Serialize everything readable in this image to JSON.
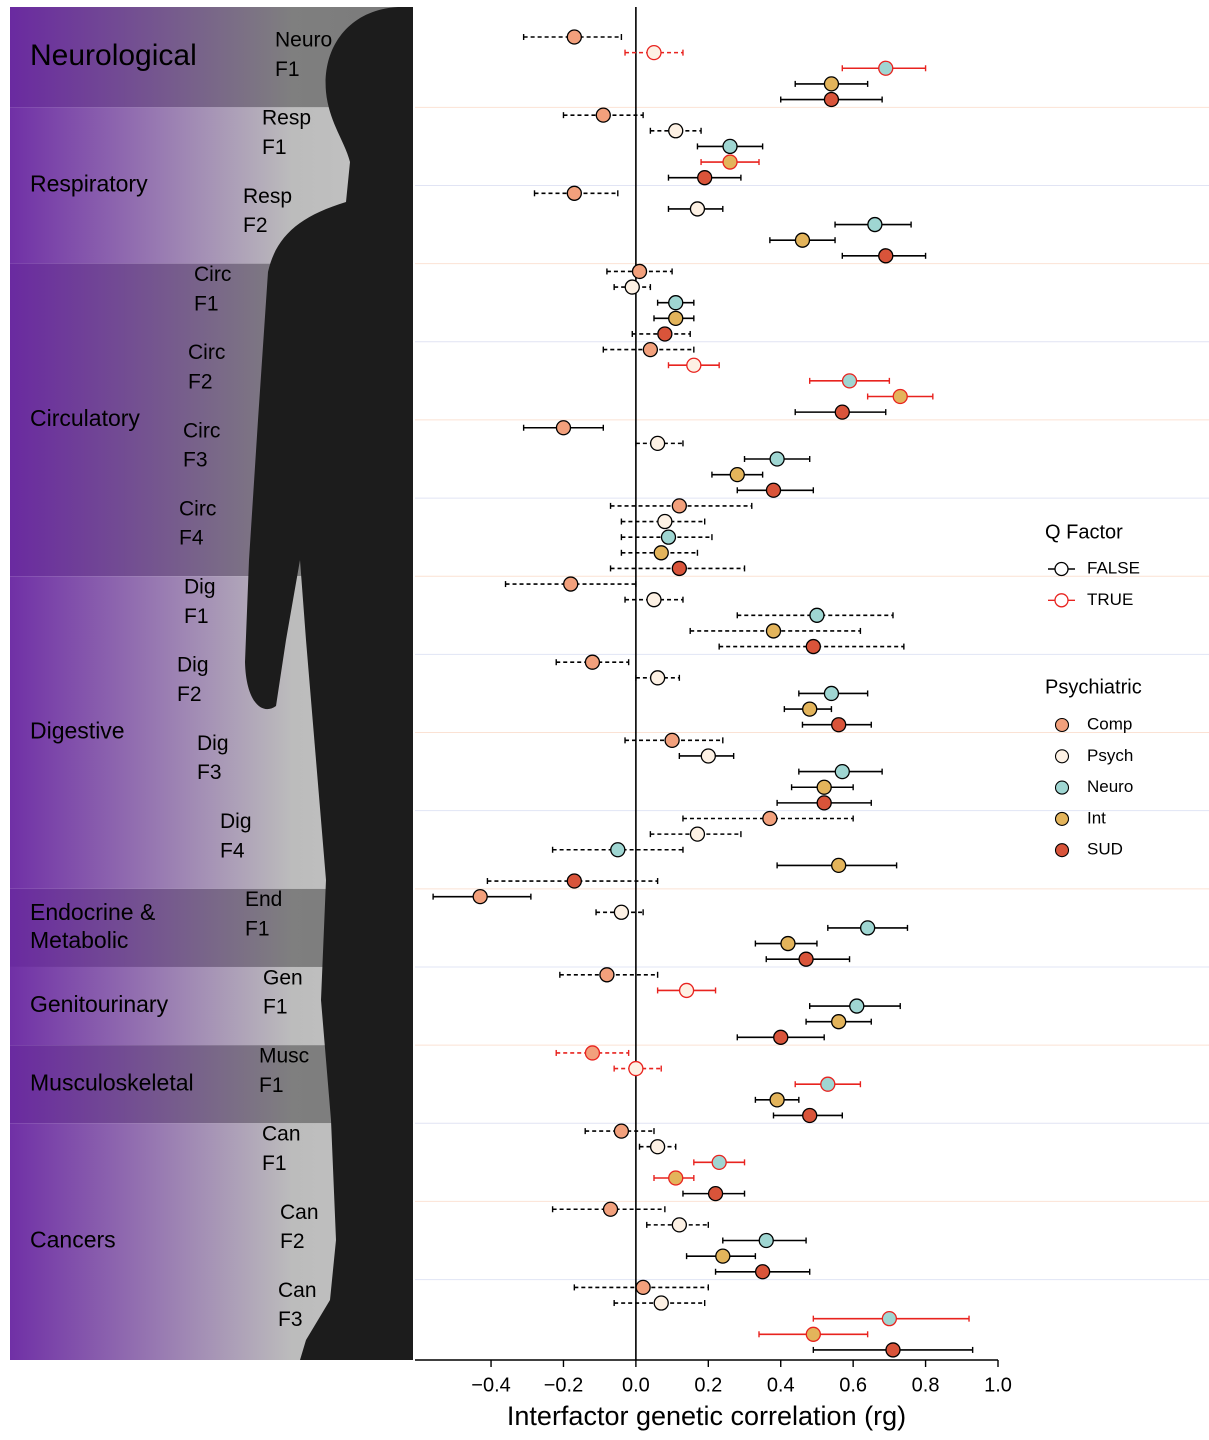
{
  "chart_data": {
    "type": "forest",
    "xlabel": "Interfactor genetic correlation (rg)",
    "xlim": [
      -0.61,
      1.0
    ],
    "xticks": [
      {
        "value": -0.4,
        "label": "−0.4"
      },
      {
        "value": -0.2,
        "label": "−0.2"
      },
      {
        "value": 0,
        "label": "0.0"
      },
      {
        "value": 0.2,
        "label": "0.2"
      },
      {
        "value": 0.4,
        "label": "0.4"
      },
      {
        "value": 0.6,
        "label": "0.6"
      },
      {
        "value": 0.8,
        "label": "0.8"
      },
      {
        "value": 1,
        "label": "1.0"
      }
    ],
    "groups": [
      {
        "label": [
          "Neurological"
        ],
        "factors": [
          [
            "Neuro",
            "F1"
          ]
        ]
      },
      {
        "label": [
          "Respiratory"
        ],
        "factors": [
          [
            "Resp",
            "F1"
          ],
          [
            "Resp",
            "F2"
          ]
        ]
      },
      {
        "label": [
          "Circulatory"
        ],
        "factors": [
          [
            "Circ",
            "F1"
          ],
          [
            "Circ",
            "F2"
          ],
          [
            "Circ",
            "F3"
          ],
          [
            "Circ",
            "F4"
          ]
        ]
      },
      {
        "label": [
          "Digestive"
        ],
        "factors": [
          [
            "Dig",
            "F1"
          ],
          [
            "Dig",
            "F2"
          ],
          [
            "Dig",
            "F3"
          ],
          [
            "Dig",
            "F4"
          ]
        ]
      },
      {
        "label": [
          "Endocrine &",
          "Metabolic"
        ],
        "factors": [
          [
            "End",
            "F1"
          ]
        ]
      },
      {
        "label": [
          "Genitourinary"
        ],
        "factors": [
          [
            "Gen",
            "F1"
          ]
        ]
      },
      {
        "label": [
          "Musculoskeletal"
        ],
        "factors": [
          [
            "Musc",
            "F1"
          ]
        ]
      },
      {
        "label": [
          "Cancers"
        ],
        "factors": [
          [
            "Can",
            "F1"
          ],
          [
            "Can",
            "F2"
          ],
          [
            "Can",
            "F3"
          ]
        ]
      }
    ],
    "q_legend": {
      "title": "Q Factor",
      "entries": [
        {
          "name": "FALSE",
          "color": "#000000"
        },
        {
          "name": "TRUE",
          "color": "#e8231f"
        }
      ]
    },
    "series_legend_title": "Psychiatric",
    "series": [
      {
        "name": "Comp",
        "color": "#f2a07c",
        "values": [
          -0.17,
          -0.09,
          -0.17,
          0.01,
          0.04,
          -0.2,
          0.12,
          -0.18,
          -0.12,
          0.1,
          0.37,
          -0.43,
          -0.08,
          -0.12,
          -0.04,
          -0.07,
          0.02
        ],
        "lower": [
          -0.31,
          -0.2,
          -0.28,
          -0.08,
          -0.09,
          -0.31,
          -0.07,
          -0.36,
          -0.22,
          -0.03,
          0.13,
          -0.56,
          -0.21,
          -0.22,
          -0.14,
          -0.23,
          -0.17
        ],
        "upper": [
          -0.04,
          0.02,
          -0.05,
          0.1,
          0.16,
          -0.09,
          0.32,
          0.0,
          -0.02,
          0.24,
          0.6,
          -0.29,
          0.06,
          -0.02,
          0.05,
          0.08,
          0.2
        ],
        "q": [
          false,
          false,
          false,
          false,
          false,
          false,
          false,
          false,
          false,
          false,
          false,
          false,
          false,
          true,
          false,
          false,
          false
        ],
        "dashed": [
          true,
          true,
          true,
          true,
          true,
          false,
          true,
          true,
          true,
          true,
          true,
          false,
          true,
          true,
          true,
          true,
          true
        ]
      },
      {
        "name": "Psych",
        "color": "#fdf1e4",
        "values": [
          0.05,
          0.11,
          0.17,
          -0.01,
          0.16,
          0.06,
          0.08,
          0.05,
          0.06,
          0.2,
          0.17,
          -0.04,
          0.14,
          0.0,
          0.06,
          0.12,
          0.07
        ],
        "lower": [
          -0.03,
          0.04,
          0.09,
          -0.06,
          0.09,
          0.0,
          -0.04,
          -0.03,
          0.0,
          0.12,
          0.04,
          -0.11,
          0.06,
          -0.06,
          0.01,
          0.03,
          -0.06
        ],
        "upper": [
          0.13,
          0.18,
          0.24,
          0.04,
          0.23,
          0.13,
          0.19,
          0.13,
          0.12,
          0.27,
          0.29,
          0.02,
          0.22,
          0.07,
          0.11,
          0.2,
          0.19
        ],
        "q": [
          true,
          false,
          false,
          false,
          true,
          false,
          false,
          false,
          false,
          false,
          false,
          false,
          true,
          true,
          false,
          false,
          false
        ],
        "dashed": [
          true,
          true,
          false,
          true,
          false,
          true,
          true,
          true,
          true,
          false,
          true,
          true,
          false,
          true,
          true,
          true,
          true
        ]
      },
      {
        "name": "Neuro",
        "color": "#9fd6d2",
        "values": [
          0.69,
          0.26,
          0.66,
          0.11,
          0.59,
          0.39,
          0.09,
          0.5,
          0.54,
          0.57,
          -0.05,
          0.64,
          0.61,
          0.53,
          0.23,
          0.36,
          0.7
        ],
        "lower": [
          0.57,
          0.17,
          0.55,
          0.06,
          0.48,
          0.3,
          -0.04,
          0.28,
          0.45,
          0.45,
          -0.23,
          0.53,
          0.48,
          0.44,
          0.16,
          0.24,
          0.49
        ],
        "upper": [
          0.8,
          0.35,
          0.76,
          0.16,
          0.7,
          0.48,
          0.21,
          0.71,
          0.64,
          0.68,
          0.13,
          0.75,
          0.73,
          0.62,
          0.3,
          0.47,
          0.92
        ],
        "q": [
          true,
          false,
          false,
          false,
          true,
          false,
          false,
          false,
          false,
          false,
          false,
          false,
          false,
          true,
          true,
          false,
          true
        ],
        "dashed": [
          false,
          false,
          false,
          false,
          false,
          false,
          true,
          true,
          false,
          false,
          true,
          false,
          false,
          false,
          false,
          false,
          false
        ]
      },
      {
        "name": "Int",
        "color": "#e3b45b",
        "values": [
          0.54,
          0.26,
          0.46,
          0.11,
          0.73,
          0.28,
          0.07,
          0.38,
          0.48,
          0.52,
          0.56,
          0.42,
          0.56,
          0.39,
          0.11,
          0.24,
          0.49
        ],
        "lower": [
          0.44,
          0.18,
          0.37,
          0.05,
          0.64,
          0.21,
          -0.04,
          0.15,
          0.41,
          0.43,
          0.39,
          0.33,
          0.47,
          0.33,
          0.05,
          0.14,
          0.34
        ],
        "upper": [
          0.64,
          0.34,
          0.55,
          0.16,
          0.82,
          0.35,
          0.17,
          0.62,
          0.54,
          0.6,
          0.72,
          0.5,
          0.65,
          0.45,
          0.16,
          0.33,
          0.64
        ],
        "q": [
          false,
          true,
          false,
          false,
          true,
          false,
          false,
          false,
          false,
          false,
          false,
          false,
          false,
          false,
          true,
          false,
          true
        ],
        "dashed": [
          false,
          false,
          false,
          false,
          false,
          false,
          true,
          true,
          false,
          false,
          false,
          false,
          false,
          false,
          false,
          false,
          false
        ]
      },
      {
        "name": "SUD",
        "color": "#d9543a",
        "values": [
          0.54,
          0.19,
          0.69,
          0.08,
          0.57,
          0.38,
          0.12,
          0.49,
          0.56,
          0.52,
          -0.17,
          0.47,
          0.4,
          0.48,
          0.22,
          0.35,
          0.71
        ],
        "lower": [
          0.4,
          0.09,
          0.57,
          -0.01,
          0.44,
          0.28,
          -0.07,
          0.23,
          0.46,
          0.39,
          -0.41,
          0.36,
          0.28,
          0.38,
          0.13,
          0.22,
          0.49
        ],
        "upper": [
          0.68,
          0.29,
          0.8,
          0.15,
          0.69,
          0.49,
          0.3,
          0.74,
          0.65,
          0.65,
          0.06,
          0.59,
          0.52,
          0.57,
          0.3,
          0.48,
          0.93
        ],
        "q": [
          false,
          false,
          false,
          false,
          false,
          false,
          false,
          false,
          false,
          false,
          false,
          false,
          false,
          false,
          false,
          false,
          false
        ],
        "dashed": [
          false,
          false,
          false,
          true,
          false,
          false,
          true,
          true,
          false,
          false,
          true,
          false,
          false,
          false,
          false,
          false,
          false
        ]
      }
    ]
  }
}
